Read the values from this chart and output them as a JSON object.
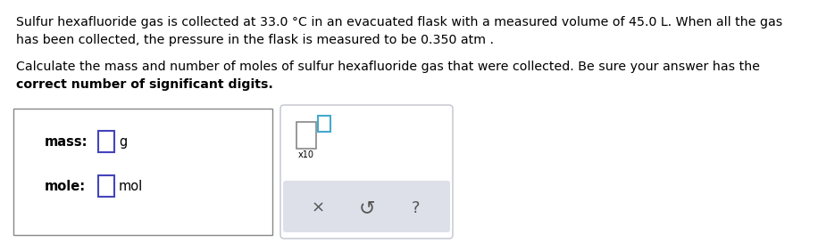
{
  "background_color": "#ffffff",
  "text_color": "#000000",
  "paragraph1_line1": "Sulfur hexafluoride gas is collected at 33.0 °C in an evacuated flask with a measured volume of 45.0 L. When all the gas",
  "paragraph1_line2": "has been collected, the pressure in the flask is measured to be 0.350 atm .",
  "paragraph2_line1": "Calculate the mass and number of moles of sulfur hexafluoride gas that were collected. Be sure your answer has the",
  "paragraph2_line2": "correct number of significant digits.",
  "label_mass": "mass:",
  "label_mole": "mole:",
  "unit_g": "g",
  "unit_mol": "mol",
  "x10_label": "x10",
  "input_box_color": "#4444bb",
  "input_box2_color": "#44aacc",
  "button_bar_color": "#dde0e8",
  "font_size_text": 10.2,
  "font_size_label": 10.5,
  "font_size_buttons": 13
}
